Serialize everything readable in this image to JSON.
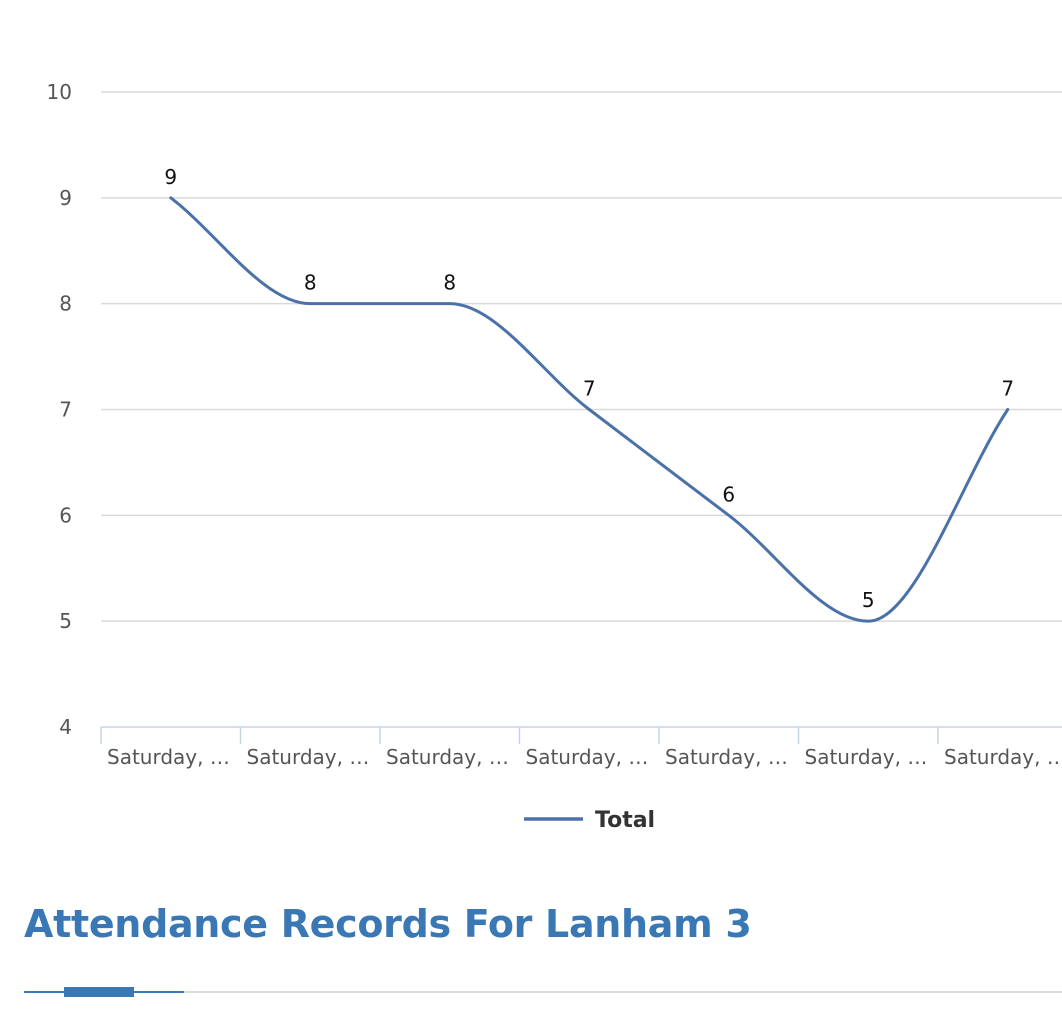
{
  "chart_data": {
    "type": "line",
    "categories": [
      "Saturday, …",
      "Saturday, …",
      "Saturday, …",
      "Saturday, …",
      "Saturday, …",
      "Saturday, …",
      "Saturday, …"
    ],
    "series": [
      {
        "name": "Total",
        "values": [
          9,
          8,
          8,
          7,
          6,
          5,
          7
        ],
        "color": "#4a72a8"
      }
    ],
    "ylim": [
      4,
      10
    ],
    "yticks": [
      "10",
      "9",
      "8",
      "7",
      "6",
      "5",
      "4"
    ],
    "ytick_values": [
      10,
      9,
      8,
      7,
      6,
      5,
      4
    ],
    "grid": true,
    "data_labels": true,
    "smooth": true,
    "legend": "bottom-center"
  },
  "page": {
    "heading": "Attendance Records For Lanham 3",
    "accent_color": "#3a78b5"
  }
}
